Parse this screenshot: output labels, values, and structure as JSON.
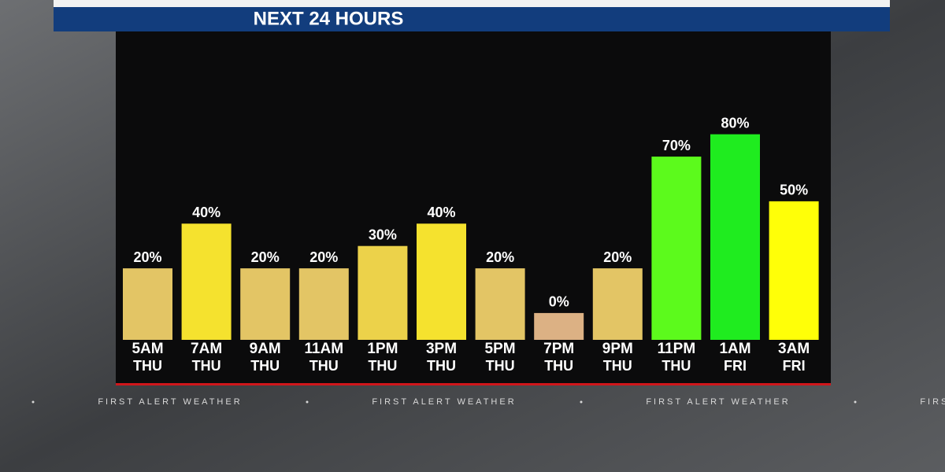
{
  "chart_data": {
    "type": "bar",
    "title": "NEXT 24 HOURS",
    "categories": [
      "5AM",
      "7AM",
      "9AM",
      "11AM",
      "1PM",
      "3PM",
      "5PM",
      "7PM",
      "9PM",
      "11PM",
      "1AM",
      "3AM"
    ],
    "days": [
      "THU",
      "THU",
      "THU",
      "THU",
      "THU",
      "THU",
      "THU",
      "THU",
      "THU",
      "THU",
      "FRI",
      "FRI"
    ],
    "values": [
      20,
      40,
      20,
      20,
      30,
      40,
      20,
      0,
      20,
      70,
      80,
      50
    ],
    "value_labels": [
      "20%",
      "40%",
      "20%",
      "20%",
      "30%",
      "40%",
      "20%",
      "0%",
      "20%",
      "70%",
      "80%",
      "50%"
    ],
    "colors": [
      "#e3c565",
      "#f5e22e",
      "#e3c565",
      "#e3c565",
      "#ecd24a",
      "#f5e22e",
      "#e3c565",
      "#dcb184",
      "#e3c565",
      "#5cfa1c",
      "#1fec1f",
      "#ffff08"
    ],
    "ylim": [
      -12,
      126
    ],
    "ticker": "FIRST ALERT WEATHER"
  }
}
